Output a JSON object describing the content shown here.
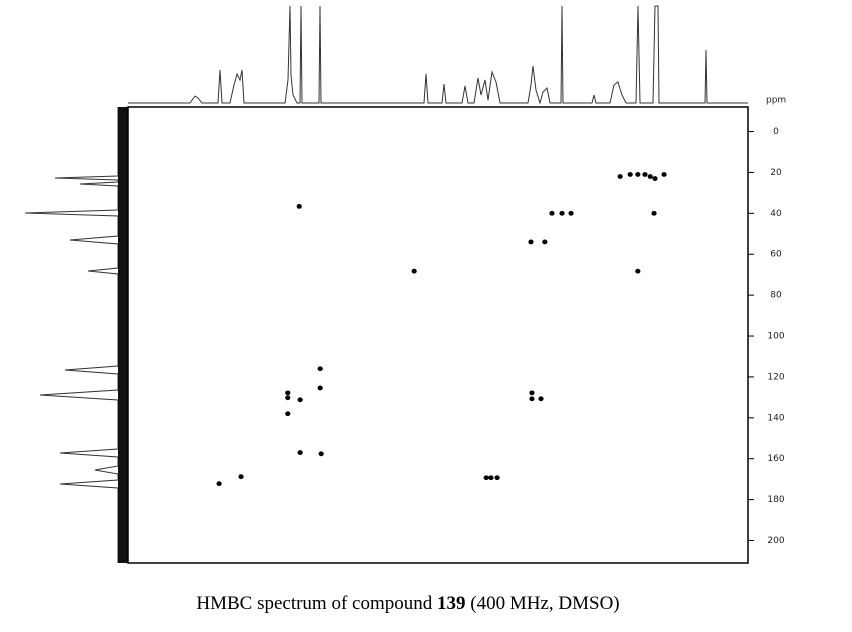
{
  "chart_data": {
    "type": "scatter",
    "caption": {
      "prefix": "HMBC spectrum of compound ",
      "compound": "139",
      "suffix": " (400 MHz, DMSO)"
    },
    "y_label": "ppm",
    "xlim": [
      12.5,
      -0.5
    ],
    "ylim": [
      -12,
      211
    ],
    "yticks": [
      0,
      20,
      40,
      60,
      80,
      100,
      120,
      140,
      160,
      180,
      200
    ],
    "series": [
      {
        "color": "#000000",
        "x": [
          8.91,
          6.5,
          9.15,
          9.15,
          8.89,
          9.15,
          8.47,
          8.47,
          8.89,
          8.45,
          10.59,
          10.13,
          4.99,
          4.89,
          4.76,
          4.03,
          4.03,
          3.84,
          4.05,
          3.76,
          3.61,
          3.4,
          3.21,
          1.81,
          1.47,
          2.18,
          1.97,
          1.81,
          1.66,
          1.55,
          1.45,
          1.26
        ],
        "y": [
          36.6,
          68.3,
          127.8,
          130.2,
          131.2,
          138,
          125.4,
          116,
          157,
          157.6,
          172.2,
          168.8,
          169.3,
          169.3,
          169.3,
          127.8,
          130.7,
          130.7,
          54,
          54,
          40,
          40,
          40,
          68.3,
          40,
          22,
          21,
          21,
          21,
          22,
          23,
          21
        ]
      }
    ]
  }
}
